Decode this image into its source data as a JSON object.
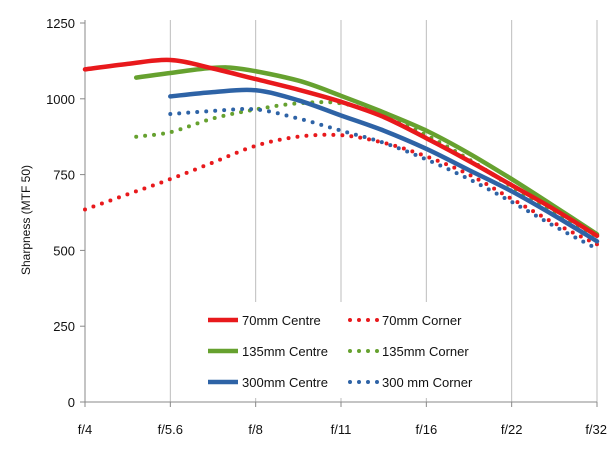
{
  "chart_data": {
    "type": "line",
    "title": "",
    "xlabel": "",
    "ylabel": "Sharpness  (MTF 50)",
    "x_ticks": [
      "f/4",
      "f/5.6",
      "f/8",
      "f/11",
      "f/16",
      "f/22",
      "f/32"
    ],
    "y_ticks": [
      "0",
      "250",
      "500",
      "750",
      "1000",
      "1250"
    ],
    "ylim": [
      0,
      1250
    ],
    "grid": "vertical",
    "legend_position": "bottom-center",
    "series": [
      {
        "name": "70mm Centre",
        "color": "#e8191c",
        "style": "solid",
        "points": [
          [
            0,
            1097
          ],
          [
            0.5,
            1115
          ],
          [
            1,
            1128
          ],
          [
            1.5,
            1100
          ],
          [
            2,
            1065
          ],
          [
            2.5,
            1030
          ],
          [
            3,
            990
          ],
          [
            3.5,
            940
          ],
          [
            4,
            870
          ],
          [
            4.5,
            795
          ],
          [
            5,
            715
          ],
          [
            5.5,
            635
          ],
          [
            6,
            548
          ]
        ]
      },
      {
        "name": "70mm Corner",
        "color": "#e8191c",
        "style": "dotted",
        "points": [
          [
            0,
            635
          ],
          [
            0.5,
            685
          ],
          [
            1,
            735
          ],
          [
            1.5,
            790
          ],
          [
            2,
            845
          ],
          [
            2.5,
            875
          ],
          [
            3,
            880
          ],
          [
            3.5,
            855
          ],
          [
            4,
            810
          ],
          [
            4.5,
            750
          ],
          [
            5,
            670
          ],
          [
            5.5,
            590
          ],
          [
            6,
            520
          ]
        ]
      },
      {
        "name": "135mm Centre",
        "color": "#66a12f",
        "style": "solid",
        "points": [
          [
            0.6,
            1070
          ],
          [
            1,
            1085
          ],
          [
            1.5,
            1102
          ],
          [
            1.85,
            1098
          ],
          [
            2.5,
            1060
          ],
          [
            3,
            1010
          ],
          [
            3.5,
            955
          ],
          [
            4,
            895
          ],
          [
            4.5,
            820
          ],
          [
            5,
            735
          ],
          [
            5.5,
            645
          ],
          [
            6,
            553
          ]
        ]
      },
      {
        "name": "135mm Corner",
        "color": "#66a12f",
        "style": "dotted",
        "points": [
          [
            0.6,
            875
          ],
          [
            1,
            890
          ],
          [
            1.5,
            935
          ],
          [
            2,
            965
          ],
          [
            2.5,
            985
          ],
          [
            3,
            985
          ],
          [
            3.5,
            945
          ],
          [
            4,
            880
          ],
          [
            4.5,
            800
          ],
          [
            5,
            710
          ],
          [
            5.5,
            625
          ],
          [
            6,
            545
          ]
        ]
      },
      {
        "name": "300mm Centre",
        "color": "#2e63a6",
        "style": "solid",
        "points": [
          [
            1,
            1008
          ],
          [
            1.5,
            1022
          ],
          [
            2,
            1028
          ],
          [
            2.5,
            995
          ],
          [
            3,
            945
          ],
          [
            3.5,
            895
          ],
          [
            4,
            835
          ],
          [
            4.5,
            765
          ],
          [
            5,
            695
          ],
          [
            5.5,
            615
          ],
          [
            6,
            530
          ]
        ]
      },
      {
        "name": "300 mm Corner",
        "color": "#2e63a6",
        "style": "dotted",
        "points": [
          [
            1,
            950
          ],
          [
            1.5,
            960
          ],
          [
            2,
            965
          ],
          [
            2.5,
            935
          ],
          [
            3,
            895
          ],
          [
            3.5,
            855
          ],
          [
            4,
            800
          ],
          [
            4.5,
            735
          ],
          [
            5,
            660
          ],
          [
            5.5,
            580
          ],
          [
            6,
            505
          ]
        ]
      }
    ]
  }
}
